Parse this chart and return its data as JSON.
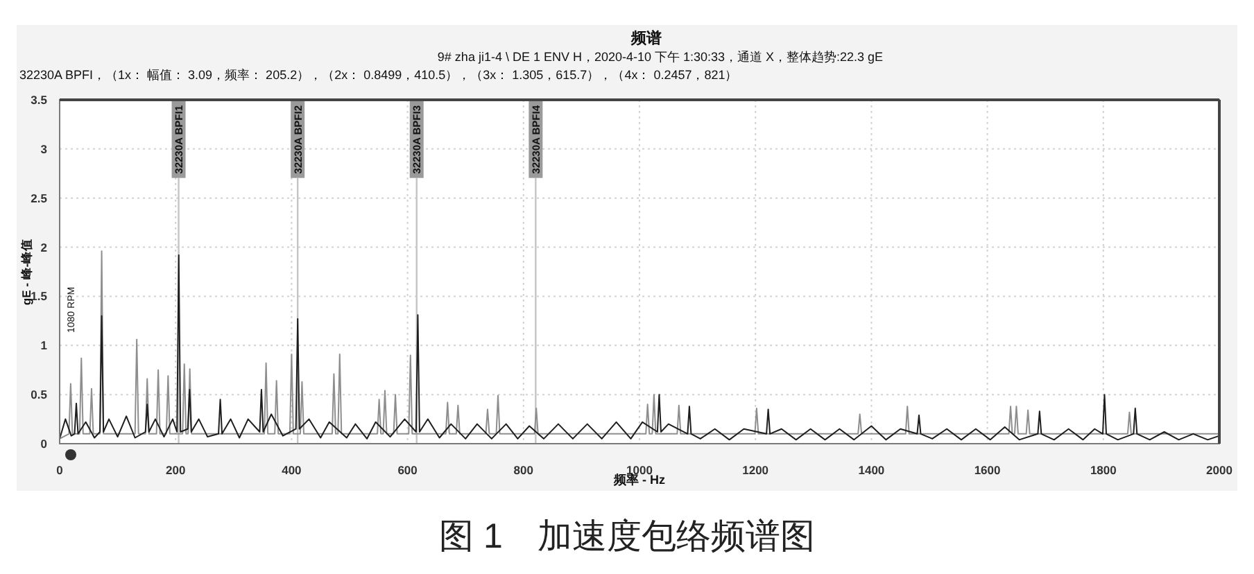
{
  "chart_data": {
    "type": "line",
    "title": "频谱",
    "subtitle": "9# zha ji1-4 \\ DE 1 ENV H，2020-4-10 下午 1:30:33，通道 X，整体趋势:22.3 gE",
    "xlabel": "频率 - Hz",
    "ylabel": "gE - 峰-峰值",
    "annotations": [
      "32230A BPFI，（1x：  幅值：  3.09，频率：  205.2），（2x：  0.8499，410.5），（3x：  1.305，615.7），（4x：  0.2457，821）",
      "1080 RPM",
      "图 1　加速度包络频谱图"
    ],
    "series": [
      {
        "color": "#8e8e8e",
        "x": [
          0,
          16,
          19,
          22,
          34.4,
          37.4,
          40.4,
          52,
          55,
          58,
          69.5,
          72.5,
          75.5,
          130,
          133,
          136,
          148,
          151,
          154,
          167,
          170,
          173,
          184,
          187,
          190,
          212,
          215,
          218,
          221.5,
          224.5,
          227.5,
          353,
          356,
          359,
          371,
          374,
          377,
          397,
          400,
          403,
          415,
          418,
          421,
          470,
          473,
          476,
          480,
          483,
          486,
          548,
          551,
          554,
          558,
          561,
          564,
          576,
          579,
          582,
          602,
          605,
          608,
          666,
          669,
          672,
          684,
          687,
          690,
          735,
          738,
          741,
          753,
          756,
          759,
          819,
          822,
          825,
          1011,
          1014,
          1017,
          1022,
          1025,
          1028,
          1065,
          1068,
          1071,
          1199,
          1202,
          1205,
          1377,
          1380,
          1383,
          1459,
          1462,
          1465,
          1637,
          1640,
          1643,
          1647,
          1650,
          1653,
          1667,
          1670,
          1673,
          1842,
          1845,
          1848,
          2000
        ],
        "values": [
          0.05,
          0.1,
          0.61,
          0.1,
          0.1,
          0.87,
          0.1,
          0.1,
          0.56,
          0.1,
          0.1,
          1.96,
          0.1,
          0.1,
          1.06,
          0.1,
          0.1,
          0.66,
          0.1,
          0.1,
          0.75,
          0.1,
          0.1,
          0.69,
          0.1,
          0.1,
          0.81,
          0.1,
          0.1,
          0.76,
          0.1,
          0.1,
          0.82,
          0.1,
          0.1,
          0.64,
          0.1,
          0.1,
          0.91,
          0.1,
          0.1,
          0.63,
          0.1,
          0.1,
          0.71,
          0.1,
          0.1,
          0.91,
          0.1,
          0.1,
          0.45,
          0.1,
          0.1,
          0.54,
          0.1,
          0.1,
          0.5,
          0.1,
          0.1,
          0.9,
          0.1,
          0.1,
          0.42,
          0.1,
          0.1,
          0.39,
          0.1,
          0.1,
          0.35,
          0.1,
          0.1,
          0.49,
          0.1,
          0.1,
          0.36,
          0.1,
          0.1,
          0.4,
          0.1,
          0.1,
          0.5,
          0.1,
          0.1,
          0.39,
          0.1,
          0.1,
          0.36,
          0.1,
          0.1,
          0.3,
          0.1,
          0.1,
          0.38,
          0.1,
          0.1,
          0.38,
          0.1,
          0.1,
          0.38,
          0.1,
          0.1,
          0.34,
          0.1,
          0.1,
          0.32,
          0.1,
          0.1
        ]
      },
      {
        "color": "#1e1e1e",
        "x": [
          0,
          10,
          20,
          25.7,
          28.7,
          31.7,
          45,
          60,
          69.5,
          72.5,
          75.5,
          85,
          100,
          115,
          130,
          148,
          151,
          154,
          165,
          180,
          195,
          202.4,
          205.4,
          208.4,
          221,
          224,
          227,
          240,
          255,
          274,
          277,
          280,
          295,
          310,
          325,
          345,
          348,
          351,
          365,
          385,
          407.5,
          410.5,
          413.5,
          430,
          450,
          465,
          495,
          510,
          530,
          545,
          570,
          595,
          614.7,
          617.7,
          620.7,
          635,
          655,
          675,
          700,
          720,
          745,
          770,
          790,
          810,
          835,
          860,
          885,
          910,
          935,
          960,
          985,
          1005,
          1031,
          1034,
          1037,
          1050,
          1083,
          1086,
          1089,
          1105,
          1130,
          1155,
          1180,
          1219,
          1222,
          1225,
          1245,
          1270,
          1295,
          1320,
          1345,
          1370,
          1400,
          1425,
          1450,
          1479,
          1482,
          1485,
          1505,
          1530,
          1555,
          1580,
          1605,
          1630,
          1655,
          1687,
          1690,
          1693,
          1715,
          1740,
          1765,
          1785,
          1799,
          1802,
          1805,
          1825,
          1852,
          1855,
          1858,
          1880,
          1905,
          1930,
          1955,
          1980,
          2000
        ],
        "values": [
          0.05,
          0.25,
          0.08,
          0.1,
          0.41,
          0.1,
          0.22,
          0.06,
          0.12,
          1.3,
          0.12,
          0.25,
          0.07,
          0.28,
          0.06,
          0.12,
          0.4,
          0.12,
          0.25,
          0.07,
          0.25,
          0.12,
          1.92,
          0.12,
          0.15,
          0.55,
          0.12,
          0.25,
          0.07,
          0.1,
          0.45,
          0.1,
          0.25,
          0.06,
          0.25,
          0.12,
          0.55,
          0.12,
          0.3,
          0.08,
          0.15,
          1.27,
          0.15,
          0.25,
          0.06,
          0.22,
          0.06,
          0.2,
          0.05,
          0.22,
          0.07,
          0.25,
          0.12,
          1.31,
          0.12,
          0.25,
          0.06,
          0.2,
          0.05,
          0.2,
          0.05,
          0.2,
          0.05,
          0.18,
          0.05,
          0.2,
          0.05,
          0.2,
          0.05,
          0.22,
          0.05,
          0.22,
          0.12,
          0.5,
          0.12,
          0.2,
          0.1,
          0.38,
          0.1,
          0.05,
          0.15,
          0.04,
          0.15,
          0.1,
          0.35,
          0.1,
          0.15,
          0.04,
          0.15,
          0.04,
          0.15,
          0.04,
          0.18,
          0.04,
          0.15,
          0.1,
          0.29,
          0.1,
          0.05,
          0.15,
          0.04,
          0.15,
          0.04,
          0.17,
          0.04,
          0.1,
          0.33,
          0.1,
          0.04,
          0.15,
          0.04,
          0.15,
          0.1,
          0.5,
          0.1,
          0.04,
          0.1,
          0.36,
          0.1,
          0.04,
          0.12,
          0.04,
          0.1,
          0.04,
          0.08
        ]
      }
    ],
    "xlim": [
      0,
      2000
    ],
    "ylim": [
      0,
      3.5
    ],
    "xticks": [
      0,
      200,
      400,
      600,
      800,
      1000,
      1200,
      1400,
      1600,
      1800,
      2000
    ],
    "yticks": [
      0,
      0.5,
      1,
      1.5,
      2,
      2.5,
      3,
      3.5
    ],
    "grid": true,
    "ref_lines": [
      {
        "axis": "x",
        "value": 205.2,
        "label": "32230A BPFI1",
        "color": "#c4c4c4"
      },
      {
        "axis": "x",
        "value": 410.5,
        "label": "32230A BPFI2",
        "color": "#c4c4c4"
      },
      {
        "axis": "x",
        "value": 615.7,
        "label": "32230A BPFI3",
        "color": "#c4c4c4"
      },
      {
        "axis": "x",
        "value": 821,
        "label": "32230A BPFI4",
        "color": "#c4c4c4"
      }
    ]
  }
}
